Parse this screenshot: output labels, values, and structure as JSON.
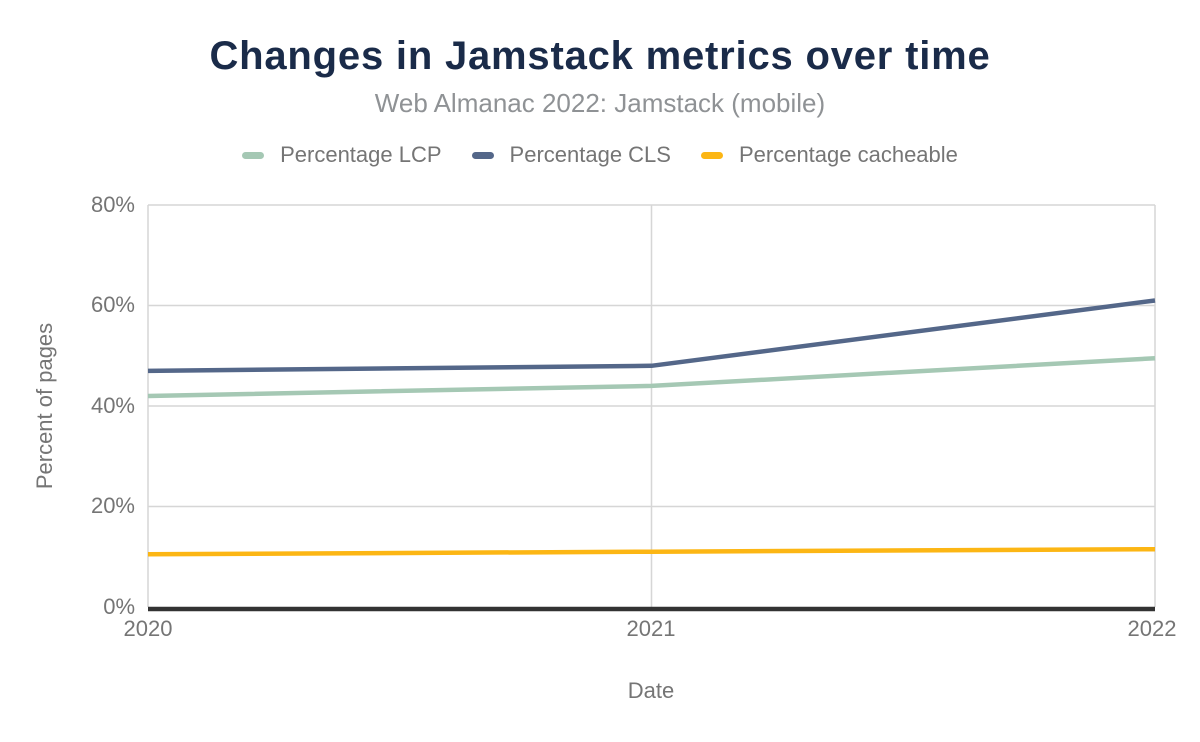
{
  "header": {
    "title": "Changes in Jamstack metrics over time",
    "subtitle": "Web Almanac 2022: Jamstack (mobile)"
  },
  "legend": {
    "items": [
      {
        "label": "Percentage LCP",
        "color": "#a5c8b4"
      },
      {
        "label": "Percentage CLS",
        "color": "#546789"
      },
      {
        "label": "Percentage cacheable",
        "color": "#fcb614"
      }
    ]
  },
  "axes": {
    "y_title": "Percent of pages",
    "x_title": "Date",
    "y_tick_labels": [
      "0%",
      "20%",
      "40%",
      "60%",
      "80%"
    ],
    "x_tick_labels": [
      "2020",
      "2021",
      "2022"
    ]
  },
  "chart_data": {
    "type": "line",
    "title": "Changes in Jamstack metrics over time",
    "subtitle": "Web Almanac 2022: Jamstack (mobile)",
    "xlabel": "Date",
    "ylabel": "Percent of pages",
    "categories": [
      "2020",
      "2021",
      "2022"
    ],
    "series": [
      {
        "name": "Percentage LCP",
        "color": "#a5c8b4",
        "values": [
          42,
          44,
          49.5
        ]
      },
      {
        "name": "Percentage CLS",
        "color": "#546789",
        "values": [
          47,
          48,
          61
        ]
      },
      {
        "name": "Percentage cacheable",
        "color": "#fcb614",
        "values": [
          10.5,
          11,
          11.5
        ]
      }
    ],
    "ylim": [
      0,
      80
    ],
    "ytick_step": 20,
    "grid": true,
    "legend_position": "top",
    "colors": {
      "title_text": "#1a2b49",
      "subtitle_text": "#8f9295",
      "axis_text": "#757575",
      "gridline": "#d6d6d6",
      "axis_line": "#333333"
    }
  }
}
